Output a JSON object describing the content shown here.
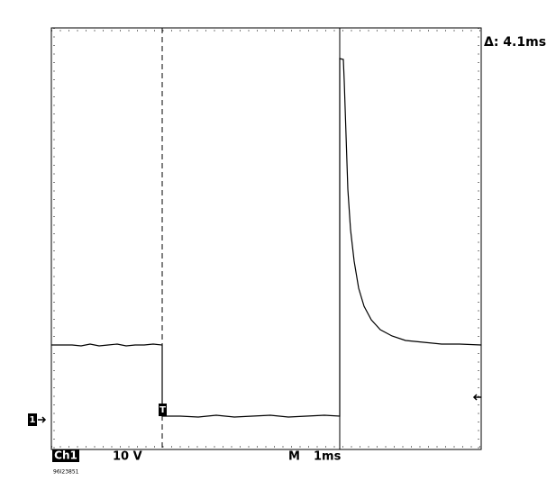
{
  "header": {
    "delta": "Δ: 4.1ms"
  },
  "markers": {
    "channel_ground": "1",
    "trigger": "T"
  },
  "footer": {
    "channel": "Ch1",
    "scale": "10 V",
    "mode": "M",
    "timebase": "1ms",
    "id": "96I23851"
  }
}
